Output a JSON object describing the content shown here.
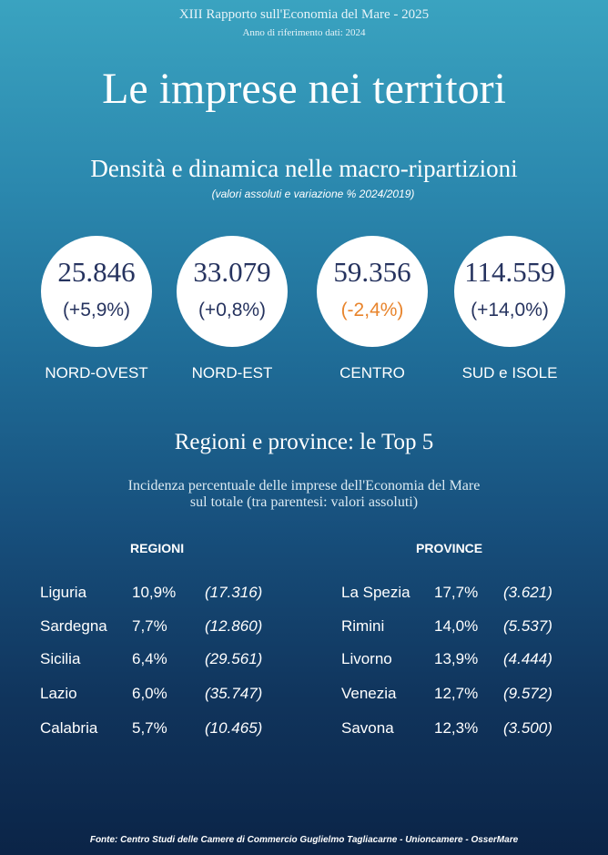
{
  "header": {
    "report": "XIII Rapporto sull'Economia del Mare - 2025",
    "year_note": "Anno di riferimento dati: 2024",
    "title": "Le imprese nei territori"
  },
  "macro": {
    "title": "Densità e dinamica nelle macro-ripartizioni",
    "subtitle": "(valori assoluti e variazione % 2024/2019)",
    "areas": [
      {
        "value": "25.846",
        "change": "(+5,9%)",
        "label": "NORD-OVEST",
        "change_color": "#26335f"
      },
      {
        "value": "33.079",
        "change": "(+0,8%)",
        "label": "NORD-EST",
        "change_color": "#26335f"
      },
      {
        "value": "59.356",
        "change": "(-2,4%)",
        "label": "CENTRO",
        "change_color": "#e8842c"
      },
      {
        "value": "114.559",
        "change": "(+14,0%)",
        "label": "SUD e ISOLE",
        "change_color": "#26335f"
      }
    ]
  },
  "top5": {
    "title": "Regioni e province: le Top 5",
    "description": [
      "Incidenza percentuale delle imprese dell'Economia del Mare",
      "sul totale (tra parentesi: valori assoluti)"
    ],
    "regions": {
      "heading": "REGIONI",
      "rows": [
        [
          "Liguria",
          "10,9%",
          "(17.316)"
        ],
        [
          "Sardegna",
          "7,7%",
          "(12.860)"
        ],
        [
          "Sicilia",
          "6,4%",
          "(29.561)"
        ],
        [
          "Lazio",
          "6,0%",
          "(35.747)"
        ],
        [
          "Calabria",
          "5,7%",
          "(10.465)"
        ]
      ]
    },
    "provinces": {
      "heading": "PROVINCE",
      "rows": [
        [
          "La Spezia",
          "17,7%",
          "(3.621)"
        ],
        [
          "Rimini",
          "14,0%",
          "(5.537)"
        ],
        [
          "Livorno",
          "13,9%",
          "(4.444)"
        ],
        [
          "Venezia",
          "12,7%",
          "(9.572)"
        ],
        [
          "Savona",
          "12,3%",
          "(3.500)"
        ]
      ]
    }
  },
  "footer": {
    "source": "Fonte: Centro Studi delle Camere di Commercio Guglielmo Tagliacarne - Unioncamere - OsserMare"
  }
}
